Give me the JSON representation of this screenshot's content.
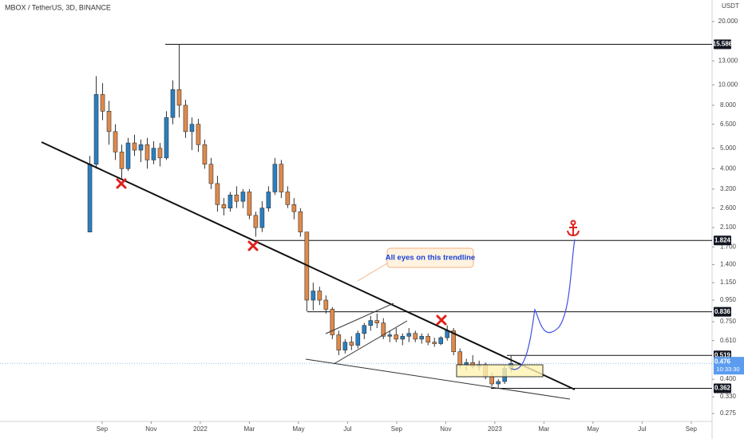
{
  "chart_data": {
    "type": "candlestick",
    "title": "MBOX / TetherUS, 3D, BINANCE",
    "currency": "USDT",
    "annotation": "All eyes on this trendline",
    "log_scale": true,
    "grid": false,
    "up_color": "#2a7fc1",
    "down_color": "#e08a4a",
    "xlim": [
      -4.16,
      24.85
    ],
    "xticks": [
      {
        "value": 0,
        "label": "Sep"
      },
      {
        "value": 2,
        "label": "Nov"
      },
      {
        "value": 4,
        "label": "2022"
      },
      {
        "value": 6,
        "label": "Mar"
      },
      {
        "value": 8,
        "label": "May"
      },
      {
        "value": 10,
        "label": "Jul"
      },
      {
        "value": 12,
        "label": "Sep"
      },
      {
        "value": 14,
        "label": "Nov"
      },
      {
        "value": 16,
        "label": "2023"
      },
      {
        "value": 18,
        "label": "Mar"
      },
      {
        "value": 20,
        "label": "May"
      },
      {
        "value": 22,
        "label": "Jul"
      },
      {
        "value": 24,
        "label": "Sep"
      }
    ],
    "ylim": [
      0.231,
      25.3
    ],
    "yticks": [
      {
        "value": 20,
        "label": "20.000"
      },
      {
        "value": 13,
        "label": "13.000"
      },
      {
        "value": 10,
        "label": "10.000"
      },
      {
        "value": 8,
        "label": "8.000"
      },
      {
        "value": 6.5,
        "label": "6.500"
      },
      {
        "value": 5,
        "label": "5.000"
      },
      {
        "value": 4,
        "label": "4.000"
      },
      {
        "value": 3.2,
        "label": "3.200"
      },
      {
        "value": 2.6,
        "label": "2.600"
      },
      {
        "value": 2.1,
        "label": "2.100"
      },
      {
        "value": 1.7,
        "label": "1.700"
      },
      {
        "value": 1.4,
        "label": "1.400"
      },
      {
        "value": 1.15,
        "label": "1.150"
      },
      {
        "value": 0.95,
        "label": "0.950"
      },
      {
        "value": 0.75,
        "label": "0.750"
      },
      {
        "value": 0.61,
        "label": "0.610"
      },
      {
        "value": 0.4,
        "label": "0.400"
      },
      {
        "value": 0.33,
        "label": "0.330"
      },
      0.275
    ],
    "levels": [
      15.586,
      1.824,
      0.836,
      0.519,
      0.362
    ],
    "last_price": 0.476,
    "countdown": "10:33:30",
    "x": [
      -0.5,
      -0.24,
      0.02,
      0.28,
      0.54,
      0.8,
      1.06,
      1.32,
      1.58,
      1.84,
      2.1,
      2.36,
      2.62,
      2.88,
      3.14,
      3.4,
      3.66,
      3.92,
      4.18,
      4.44,
      4.7,
      4.96,
      5.22,
      5.48,
      5.74,
      6.0,
      6.26,
      6.52,
      6.78,
      7.04,
      7.3,
      7.56,
      7.82,
      8.08,
      8.34,
      8.6,
      8.86,
      9.12,
      9.38,
      9.64,
      9.9,
      10.16,
      10.42,
      10.68,
      10.94,
      11.2,
      11.46,
      11.72,
      11.98,
      12.24,
      12.5,
      12.76,
      13.02,
      13.28,
      13.54,
      13.8,
      14.06,
      14.32,
      14.58,
      14.84,
      15.1,
      15.36,
      15.62,
      15.88,
      16.14,
      16.4,
      16.66
    ],
    "open": [
      2.0,
      4.2,
      9.0,
      7.5,
      6.0,
      4.8,
      4.0,
      5.3,
      4.9,
      5.2,
      4.4,
      5.0,
      4.5,
      7.0,
      9.5,
      8.0,
      6.0,
      6.5,
      5.2,
      4.2,
      3.4,
      2.7,
      2.6,
      3.0,
      2.8,
      3.1,
      2.4,
      2.1,
      2.6,
      3.1,
      4.2,
      3.1,
      2.7,
      2.5,
      2.0,
      0.95,
      1.05,
      0.95,
      0.86,
      0.65,
      0.55,
      0.6,
      0.58,
      0.66,
      0.72,
      0.76,
      0.74,
      0.64,
      0.65,
      0.62,
      0.64,
      0.66,
      0.62,
      0.64,
      0.6,
      0.59,
      0.63,
      0.68,
      0.54,
      0.47,
      0.48,
      0.46,
      0.47,
      0.41,
      0.38,
      0.39,
      0.45
    ],
    "high": [
      4.6,
      11.0,
      10.2,
      8.4,
      6.5,
      5.2,
      5.6,
      5.8,
      5.5,
      5.6,
      5.4,
      5.3,
      7.5,
      10.5,
      15.586,
      8.5,
      7.0,
      6.9,
      5.5,
      4.5,
      3.7,
      2.9,
      3.1,
      3.3,
      3.2,
      3.2,
      2.5,
      2.8,
      3.3,
      4.5,
      4.4,
      3.3,
      2.9,
      2.6,
      2.0,
      1.15,
      1.1,
      1.0,
      0.88,
      0.68,
      0.62,
      0.64,
      0.68,
      0.74,
      0.8,
      0.82,
      0.78,
      0.68,
      0.7,
      0.66,
      0.7,
      0.68,
      0.66,
      0.66,
      0.63,
      0.64,
      0.72,
      0.7,
      0.56,
      0.5,
      0.52,
      0.49,
      0.48,
      0.43,
      0.4,
      0.47,
      0.52
    ],
    "low": [
      2.0,
      4.0,
      6.8,
      5.2,
      4.4,
      3.6,
      3.9,
      4.6,
      4.3,
      4.0,
      4.2,
      4.1,
      4.4,
      6.5,
      7.0,
      5.6,
      4.9,
      4.8,
      4.0,
      3.2,
      2.5,
      2.4,
      2.5,
      2.6,
      2.6,
      2.3,
      1.9,
      2.0,
      2.5,
      3.0,
      2.9,
      2.6,
      2.3,
      1.9,
      0.84,
      0.85,
      0.9,
      0.82,
      0.62,
      0.52,
      0.53,
      0.55,
      0.56,
      0.62,
      0.68,
      0.7,
      0.62,
      0.6,
      0.6,
      0.58,
      0.6,
      0.6,
      0.59,
      0.58,
      0.57,
      0.58,
      0.61,
      0.52,
      0.45,
      0.44,
      0.45,
      0.44,
      0.4,
      0.37,
      0.36,
      0.38,
      0.43
    ],
    "close": [
      4.2,
      9.0,
      7.5,
      6.0,
      4.8,
      4.0,
      5.3,
      4.9,
      5.2,
      4.4,
      5.0,
      4.5,
      7.0,
      9.5,
      8.0,
      6.0,
      6.5,
      5.2,
      4.2,
      3.4,
      2.7,
      2.6,
      3.0,
      2.8,
      3.1,
      2.4,
      2.1,
      2.6,
      3.1,
      4.2,
      3.1,
      2.7,
      2.5,
      2.0,
      0.95,
      1.05,
      0.95,
      0.86,
      0.65,
      0.55,
      0.6,
      0.58,
      0.66,
      0.72,
      0.76,
      0.74,
      0.64,
      0.65,
      0.62,
      0.64,
      0.66,
      0.62,
      0.64,
      0.6,
      0.59,
      0.63,
      0.68,
      0.54,
      0.47,
      0.48,
      0.46,
      0.47,
      0.41,
      0.38,
      0.39,
      0.45,
      0.476
    ]
  }
}
